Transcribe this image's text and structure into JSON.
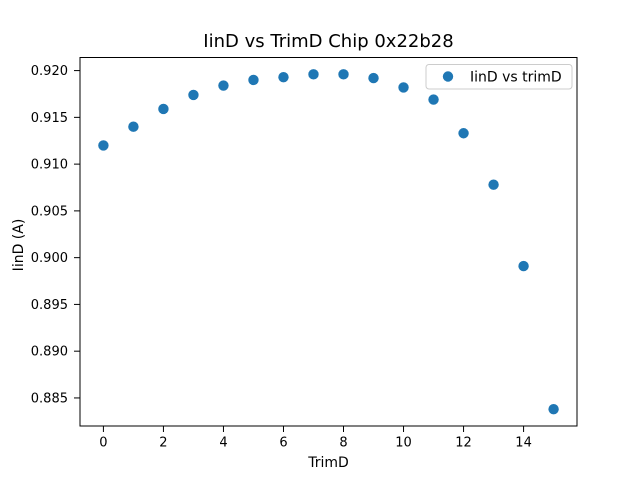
{
  "chart_data": {
    "type": "scatter",
    "title": "IinD vs TrimD Chip 0x22b28",
    "xlabel": "TrimD",
    "ylabel": "IinD (A)",
    "legend": [
      "IinD vs trimD"
    ],
    "legend_position": "upper right",
    "grid": false,
    "marker_color": "#1f77b4",
    "x": [
      0,
      1,
      2,
      3,
      4,
      5,
      6,
      7,
      8,
      9,
      10,
      11,
      12,
      13,
      14,
      15
    ],
    "y": [
      0.912,
      0.914,
      0.9159,
      0.9174,
      0.9184,
      0.919,
      0.9193,
      0.9196,
      0.9196,
      0.9192,
      0.9182,
      0.9169,
      0.9133,
      0.9078,
      0.8991,
      0.8838
    ],
    "xlim": [
      -0.78,
      15.78
    ],
    "ylim": [
      0.882,
      0.9214
    ],
    "xticks": [
      0,
      2,
      4,
      6,
      8,
      10,
      12,
      14
    ],
    "yticks": [
      0.885,
      0.89,
      0.895,
      0.9,
      0.905,
      0.91,
      0.915,
      0.92
    ],
    "ytick_decimals": 3
  }
}
